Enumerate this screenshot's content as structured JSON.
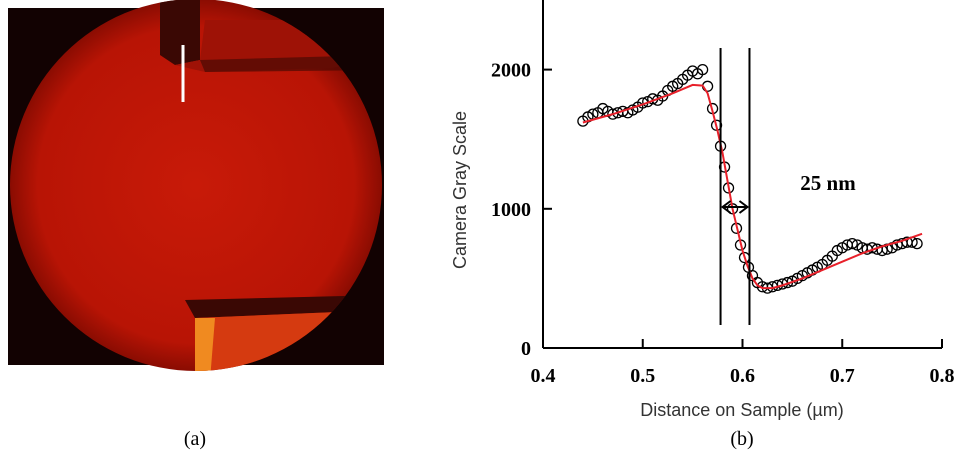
{
  "panel_labels": [
    "(a)",
    "(b)"
  ],
  "chart_data": {
    "type": "scatter",
    "ylabel": "Camera Gray Scale",
    "xlabel": "Distance on Sample (µm)",
    "annotation": "25 nm",
    "xlim": [
      0.4,
      0.8
    ],
    "xticks": [
      0.4,
      0.5,
      0.6,
      0.7,
      0.8
    ],
    "ylim": [
      0,
      2500
    ],
    "yticks": [
      0,
      1000,
      2000
    ],
    "vlines": [
      0.578,
      0.607
    ],
    "series": [
      {
        "mode": "markers",
        "color": "#000000",
        "x": [
          0.44,
          0.445,
          0.45,
          0.455,
          0.46,
          0.465,
          0.47,
          0.475,
          0.48,
          0.485,
          0.49,
          0.495,
          0.5,
          0.505,
          0.51,
          0.515,
          0.52,
          0.525,
          0.53,
          0.535,
          0.54,
          0.545,
          0.55,
          0.555,
          0.56,
          0.565,
          0.57,
          0.574,
          0.578,
          0.582,
          0.586,
          0.59,
          0.594,
          0.598,
          0.602,
          0.606,
          0.61,
          0.615,
          0.62,
          0.625,
          0.63,
          0.635,
          0.64,
          0.645,
          0.65,
          0.655,
          0.66,
          0.665,
          0.67,
          0.675,
          0.68,
          0.685,
          0.69,
          0.695,
          0.7,
          0.705,
          0.71,
          0.715,
          0.72,
          0.725,
          0.73,
          0.735,
          0.74,
          0.745,
          0.75,
          0.755,
          0.76,
          0.765,
          0.77,
          0.775
        ],
        "values": [
          1630,
          1660,
          1680,
          1690,
          1720,
          1700,
          1680,
          1690,
          1700,
          1690,
          1710,
          1730,
          1760,
          1770,
          1790,
          1780,
          1810,
          1850,
          1880,
          1900,
          1930,
          1960,
          1990,
          1970,
          2000,
          1880,
          1720,
          1600,
          1450,
          1300,
          1150,
          1000,
          860,
          740,
          650,
          580,
          520,
          470,
          440,
          430,
          440,
          450,
          460,
          470,
          480,
          500,
          520,
          540,
          560,
          580,
          600,
          630,
          660,
          700,
          720,
          740,
          750,
          740,
          720,
          710,
          720,
          710,
          700,
          710,
          720,
          740,
          750,
          760,
          760,
          750
        ]
      },
      {
        "mode": "line",
        "color": "#e8202a",
        "x": [
          0.44,
          0.47,
          0.5,
          0.53,
          0.55,
          0.56,
          0.565,
          0.57,
          0.575,
          0.58,
          0.585,
          0.59,
          0.595,
          0.6,
          0.605,
          0.61,
          0.615,
          0.62,
          0.63,
          0.64,
          0.66,
          0.68,
          0.7,
          0.72,
          0.74,
          0.76,
          0.78
        ],
        "values": [
          1620,
          1680,
          1750,
          1830,
          1890,
          1885,
          1830,
          1700,
          1560,
          1400,
          1200,
          1000,
          850,
          700,
          590,
          500,
          450,
          430,
          430,
          450,
          500,
          560,
          620,
          680,
          730,
          770,
          820
        ]
      }
    ]
  }
}
